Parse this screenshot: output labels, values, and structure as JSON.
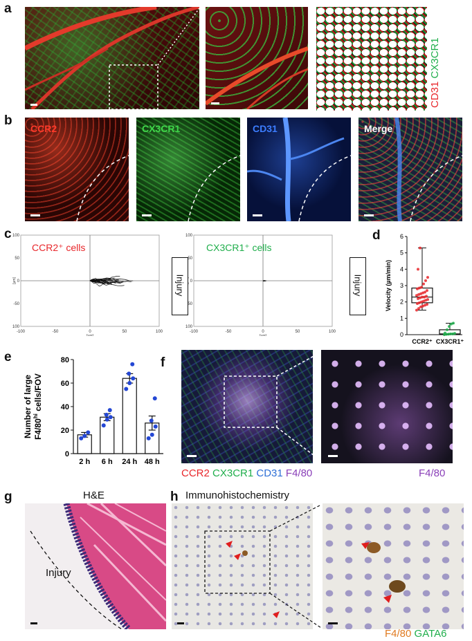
{
  "panels": {
    "a": {
      "label": "a",
      "legend": [
        {
          "text": "CD31",
          "color": "#e8262a"
        },
        {
          "text": "CX3CR1",
          "color": "#1fae4b"
        }
      ]
    },
    "b": {
      "label": "b",
      "channels": [
        {
          "text": "CCR2",
          "color": "#ff3a2a"
        },
        {
          "text": "CX3CR1",
          "color": "#3fd64a"
        },
        {
          "text": "CD31",
          "color": "#3c7dff"
        },
        {
          "text": "Merge",
          "color": "#ffffff"
        }
      ]
    },
    "c": {
      "label": "c",
      "plots": [
        {
          "title": "CCR2⁺ cells",
          "title_color": "#e8262a",
          "box_label": "Injury"
        },
        {
          "title": "CX3CR1⁺ cells",
          "title_color": "#1fae4b",
          "box_label": "Injury"
        }
      ],
      "unit": "[µm]",
      "ticks": [
        "-100",
        "-50",
        "0",
        "50",
        "100"
      ]
    },
    "e": {
      "label": "e"
    },
    "f": {
      "label": "f",
      "legend_left": [
        {
          "text": "CCR2",
          "color": "#e8262a"
        },
        {
          "text": "CX3CR1",
          "color": "#1fae4b"
        },
        {
          "text": "CD31",
          "color": "#2d6fd6"
        },
        {
          "text": "F4/80",
          "color": "#8a3fb8"
        }
      ],
      "legend_right": {
        "text": "F4/80",
        "color": "#8a3fb8"
      }
    },
    "g": {
      "label": "g",
      "title": "H&E",
      "annotation": "Injury"
    },
    "h": {
      "label": "h",
      "title": "Immunohistochemistry",
      "legend": [
        {
          "text": "F4/80",
          "color": "#e07a20"
        },
        {
          "text": "GATA6",
          "color": "#1fae4b"
        }
      ]
    }
  },
  "chart_data": [
    {
      "id": "d",
      "label": "d",
      "type": "box",
      "ylabel": "Velocity (µm/min)",
      "ylim": [
        0,
        6
      ],
      "yticks": [
        "0",
        "1",
        "2",
        "3",
        "4",
        "5",
        "6"
      ],
      "categories": [
        "CCR2⁺",
        "CX3CR1⁺"
      ],
      "colors": [
        "#e8262a",
        "#1fae4b"
      ],
      "boxes": [
        {
          "min": 1.5,
          "q1": 1.95,
          "median": 2.3,
          "q3": 2.85,
          "max": 5.3,
          "points": [
            1.5,
            1.6,
            1.7,
            1.75,
            1.8,
            1.85,
            1.9,
            1.95,
            2.0,
            2.05,
            2.1,
            2.15,
            2.2,
            2.25,
            2.3,
            2.3,
            2.35,
            2.4,
            2.45,
            2.5,
            2.55,
            2.6,
            2.7,
            2.8,
            2.85,
            2.9,
            3.1,
            3.3,
            3.5,
            4.0,
            5.3
          ]
        },
        {
          "min": 0.0,
          "q1": 0.02,
          "median": 0.05,
          "q3": 0.3,
          "max": 0.7,
          "points": [
            0.0,
            0.02,
            0.03,
            0.05,
            0.05,
            0.08,
            0.1,
            0.3,
            0.5,
            0.65,
            0.7
          ]
        }
      ]
    },
    {
      "id": "e",
      "label": "e",
      "type": "bar",
      "ylabel_line1": "Number of large",
      "ylabel_line2_pre": "F4/80",
      "ylabel_line2_sup": "hi",
      "ylabel_line2_post": " cells/FOV",
      "ylim": [
        0,
        80
      ],
      "yticks": [
        "0",
        "20",
        "40",
        "60",
        "80"
      ],
      "categories": [
        "2 h",
        "6 h",
        "24 h",
        "48 h"
      ],
      "values": [
        16,
        31,
        64,
        26
      ],
      "errors": [
        2,
        3,
        4,
        6
      ],
      "points": [
        [
          13,
          15,
          18
        ],
        [
          24,
          29,
          31,
          33,
          37
        ],
        [
          55,
          60,
          64,
          68,
          76
        ],
        [
          13,
          16,
          23,
          28,
          47
        ]
      ]
    }
  ]
}
